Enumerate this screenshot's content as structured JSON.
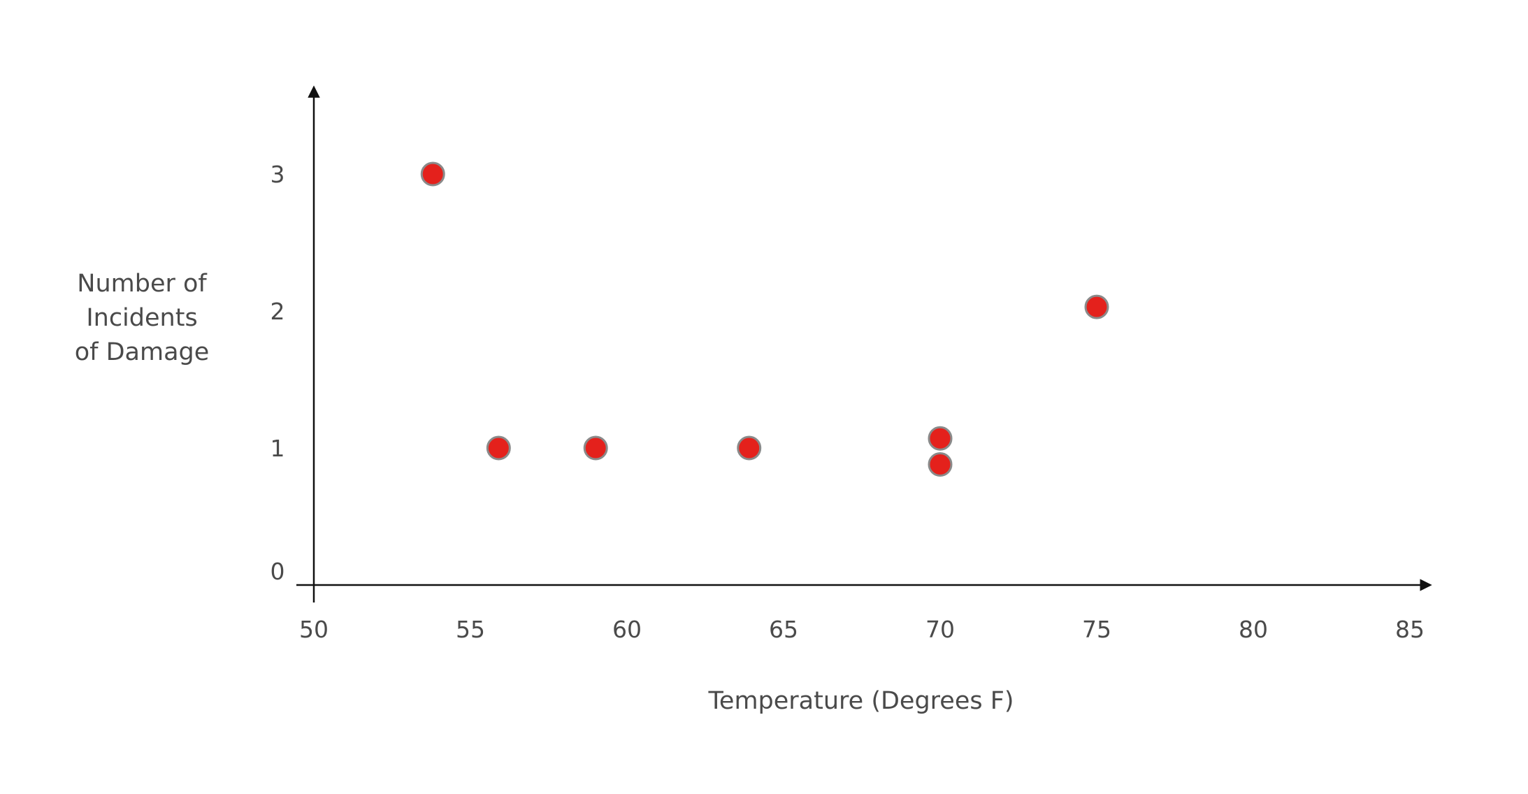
{
  "chart_data": {
    "type": "scatter",
    "title": "",
    "xlabel": "Temperature (Degrees F)",
    "ylabel_lines": [
      "Number of",
      "Incidents",
      "of Damage"
    ],
    "xlim": [
      50,
      85
    ],
    "ylim": [
      0,
      3
    ],
    "x_ticks": [
      "50",
      "55",
      "60",
      "65",
      "70",
      "75",
      "80",
      "85"
    ],
    "y_ticks": [
      "0",
      "1",
      "2",
      "3"
    ],
    "grid": false,
    "legend": "none",
    "point_color": "#e4211c",
    "point_edge_color": "#8a8a8a",
    "points": [
      {
        "x": 53.8,
        "y": 3
      },
      {
        "x": 55.9,
        "y": 1
      },
      {
        "x": 59.0,
        "y": 1
      },
      {
        "x": 63.9,
        "y": 1
      },
      {
        "x": 70.0,
        "y": 1.07
      },
      {
        "x": 70.0,
        "y": 0.88
      },
      {
        "x": 75.0,
        "y": 2.03
      }
    ]
  }
}
